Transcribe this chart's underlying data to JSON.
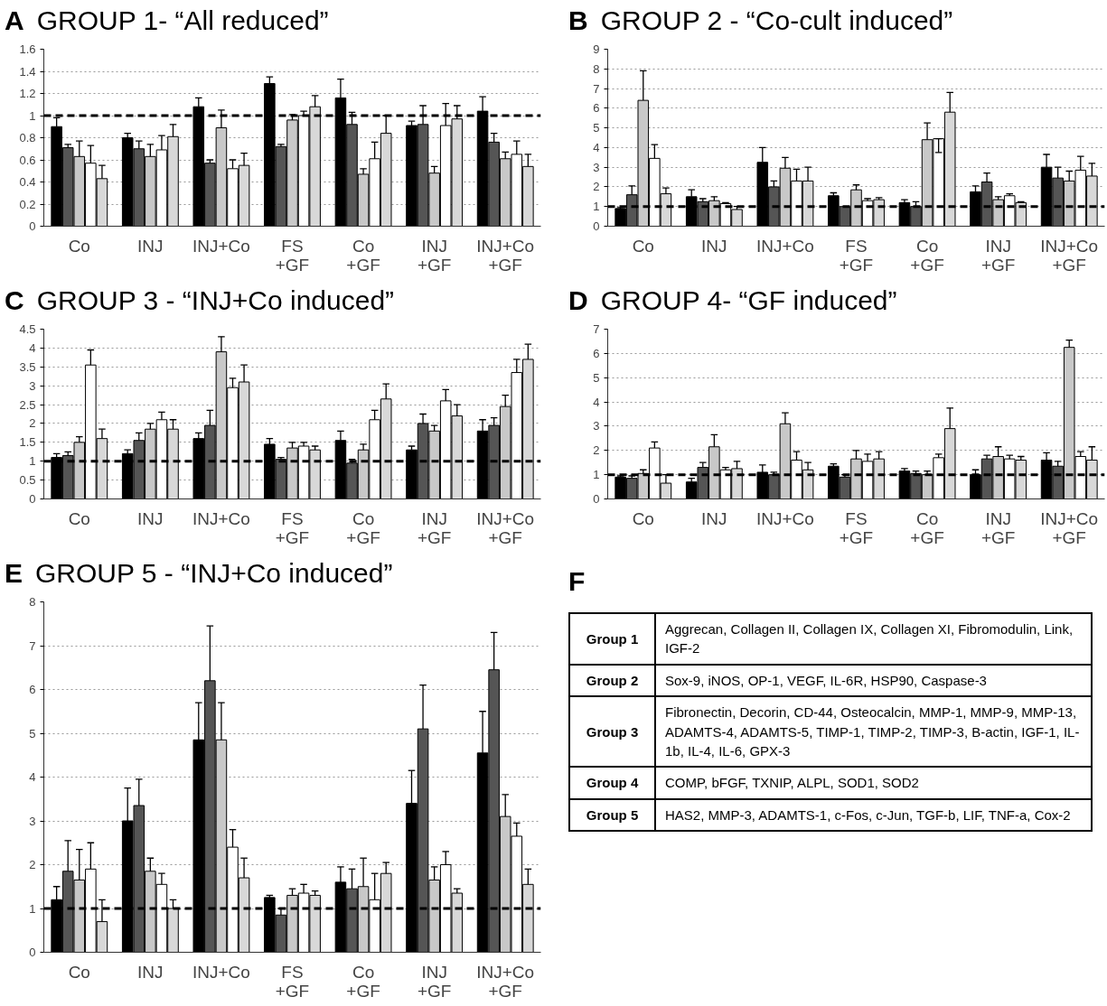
{
  "chart_data": [
    {
      "type": "bar",
      "title": "GROUP 1- “All reduced”",
      "annotations": [
        "A"
      ],
      "categories": [
        "Co",
        "INJ",
        "INJ+Co",
        "FS\n+GF",
        "Co\n+GF",
        "INJ\n+GF",
        "INJ+Co\n+GF"
      ],
      "ylim": [
        0,
        1.6
      ],
      "yticks": [
        0,
        0.2,
        0.4,
        0.6,
        0.8,
        1,
        1.2,
        1.4,
        1.6
      ],
      "grid": "y",
      "ref_lines": [
        {
          "axis": "y",
          "value": 1,
          "line_style": "dashed",
          "color": "#000000"
        }
      ],
      "series": [
        {
          "color": "#000000",
          "values": [
            0.9,
            0.8,
            1.08,
            1.29,
            1.16,
            0.91,
            1.04
          ],
          "errors": [
            [
              0.9,
              0.98
            ],
            [
              0.8,
              0.84
            ],
            [
              1.08,
              1.16
            ],
            [
              1.29,
              1.35
            ],
            [
              1.16,
              1.33
            ],
            [
              0.91,
              0.95
            ],
            [
              1.04,
              1.17
            ]
          ]
        },
        {
          "color": "#555555",
          "values": [
            0.71,
            0.7,
            0.57,
            0.72,
            0.92,
            0.92,
            0.76
          ],
          "errors": [
            [
              0.71,
              0.74
            ],
            [
              0.7,
              0.77
            ],
            [
              0.57,
              0.6
            ],
            [
              0.72,
              0.74
            ],
            [
              0.92,
              1.03
            ],
            [
              0.92,
              1.09
            ],
            [
              0.76,
              0.84
            ]
          ]
        },
        {
          "color": "#c8c8c8",
          "values": [
            0.63,
            0.63,
            0.89,
            0.96,
            0.47,
            0.48,
            0.61
          ],
          "errors": [
            [
              0.63,
              0.77
            ],
            [
              0.63,
              0.74
            ],
            [
              0.89,
              1.05
            ],
            [
              0.96,
              1.01
            ],
            [
              0.47,
              0.52
            ],
            [
              0.48,
              0.54
            ],
            [
              0.61,
              0.67
            ]
          ]
        },
        {
          "color": "#ffffff",
          "values": [
            0.57,
            0.69,
            0.52,
            1.0,
            0.61,
            0.91,
            0.65
          ],
          "errors": [
            [
              0.57,
              0.73
            ],
            [
              0.69,
              0.82
            ],
            [
              0.52,
              0.6
            ],
            [
              1.0,
              1.04
            ],
            [
              0.61,
              0.76
            ],
            [
              0.91,
              1.11
            ],
            [
              0.65,
              0.77
            ]
          ]
        },
        {
          "color": "#d8d8d8",
          "values": [
            0.43,
            0.81,
            0.55,
            1.08,
            0.84,
            0.97,
            0.54
          ],
          "errors": [
            [
              0.43,
              0.55
            ],
            [
              0.81,
              0.92
            ],
            [
              0.55,
              0.66
            ],
            [
              1.08,
              1.18
            ],
            [
              0.84,
              1.0
            ],
            [
              0.97,
              1.09
            ],
            [
              0.54,
              0.65
            ]
          ]
        }
      ]
    },
    {
      "type": "bar",
      "title": "GROUP 2 - “Co-cult induced”",
      "annotations": [
        "B"
      ],
      "categories": [
        "Co",
        "INJ",
        "INJ+Co",
        "FS\n+GF",
        "Co\n+GF",
        "INJ\n+GF",
        "INJ+Co\n+GF"
      ],
      "ylim": [
        0,
        9
      ],
      "yticks": [
        0,
        1,
        2,
        3,
        4,
        5,
        6,
        7,
        8,
        9
      ],
      "grid": "y",
      "ref_lines": [
        {
          "axis": "y",
          "value": 1,
          "line_style": "dashed",
          "color": "#000000"
        }
      ],
      "series": [
        {
          "color": "#000000",
          "values": [
            0.9,
            1.5,
            3.25,
            1.55,
            1.2,
            1.75,
            3.0
          ],
          "errors": [
            [
              0.9,
              0.95
            ],
            [
              1.5,
              1.85
            ],
            [
              3.25,
              4.0
            ],
            [
              1.55,
              1.7
            ],
            [
              1.2,
              1.35
            ],
            [
              1.75,
              2.05
            ],
            [
              3.0,
              3.65
            ]
          ]
        },
        {
          "color": "#555555",
          "values": [
            1.6,
            1.25,
            2.0,
            1.0,
            1.0,
            2.25,
            2.45
          ],
          "errors": [
            [
              1.6,
              2.05
            ],
            [
              1.25,
              1.4
            ],
            [
              2.0,
              2.3
            ],
            null,
            [
              1.0,
              1.25
            ],
            [
              2.25,
              2.7
            ],
            [
              2.45,
              3.0
            ]
          ]
        },
        {
          "color": "#c8c8c8",
          "values": [
            6.4,
            1.3,
            2.95,
            1.85,
            4.4,
            1.35,
            2.3
          ],
          "errors": [
            [
              6.4,
              7.9
            ],
            [
              1.3,
              1.5
            ],
            [
              2.95,
              3.5
            ],
            [
              1.85,
              2.1
            ],
            [
              4.4,
              5.25
            ],
            [
              1.35,
              1.5
            ],
            [
              2.3,
              2.8
            ]
          ]
        },
        {
          "color": "#ffffff",
          "values": [
            3.45,
            1.15,
            2.3,
            1.3,
            4.45,
            1.55,
            2.85
          ],
          "errors": [
            [
              3.45,
              4.15
            ],
            [
              1.15,
              1.2
            ],
            [
              2.3,
              2.9
            ],
            [
              1.3,
              1.4
            ],
            [
              3.75,
              4.45
            ],
            [
              1.55,
              1.65
            ],
            [
              2.85,
              3.55
            ]
          ]
        },
        {
          "color": "#d8d8d8",
          "values": [
            1.65,
            0.85,
            2.3,
            1.35,
            5.8,
            1.2,
            2.55
          ],
          "errors": [
            [
              1.65,
              1.95
            ],
            [
              0.85,
              1.0
            ],
            [
              2.3,
              3.0
            ],
            [
              1.35,
              1.45
            ],
            [
              5.8,
              6.8
            ],
            [
              1.2,
              1.25
            ],
            [
              2.55,
              3.2
            ]
          ]
        }
      ]
    },
    {
      "type": "bar",
      "title": "GROUP 3 - “INJ+Co induced”",
      "annotations": [
        "C"
      ],
      "categories": [
        "Co",
        "INJ",
        "INJ+Co",
        "FS\n+GF",
        "Co\n+GF",
        "INJ\n+GF",
        "INJ+Co\n+GF"
      ],
      "ylim": [
        0,
        4.5
      ],
      "yticks": [
        0,
        0.5,
        1,
        1.5,
        2,
        2.5,
        3,
        3.5,
        4,
        4.5
      ],
      "grid": "y",
      "ref_lines": [
        {
          "axis": "y",
          "value": 1,
          "line_style": "dashed",
          "color": "#000000"
        }
      ],
      "series": [
        {
          "color": "#000000",
          "values": [
            1.1,
            1.2,
            1.6,
            1.45,
            1.55,
            1.3,
            1.8
          ],
          "errors": [
            [
              1.1,
              1.2
            ],
            [
              1.2,
              1.3
            ],
            [
              1.6,
              1.75
            ],
            [
              1.45,
              1.6
            ],
            [
              1.55,
              1.8
            ],
            [
              1.3,
              1.4
            ],
            [
              1.8,
              2.1
            ]
          ]
        },
        {
          "color": "#555555",
          "values": [
            1.15,
            1.55,
            1.95,
            1.05,
            0.95,
            2.0,
            1.95
          ],
          "errors": [
            [
              1.15,
              1.25
            ],
            [
              1.55,
              1.75
            ],
            [
              1.95,
              2.35
            ],
            [
              1.05,
              1.1
            ],
            [
              0.95,
              1.05
            ],
            [
              2.0,
              2.25
            ],
            [
              1.95,
              2.15
            ]
          ]
        },
        {
          "color": "#c8c8c8",
          "values": [
            1.5,
            1.85,
            3.9,
            1.35,
            1.3,
            1.8,
            2.45
          ],
          "errors": [
            [
              1.5,
              1.65
            ],
            [
              1.85,
              2.0
            ],
            [
              3.9,
              4.3
            ],
            [
              1.35,
              1.5
            ],
            [
              1.3,
              1.45
            ],
            [
              1.8,
              1.95
            ],
            [
              2.45,
              2.75
            ]
          ]
        },
        {
          "color": "#ffffff",
          "values": [
            3.55,
            2.1,
            2.95,
            1.4,
            2.1,
            2.6,
            3.35
          ],
          "errors": [
            [
              3.55,
              3.95
            ],
            [
              2.1,
              2.3
            ],
            [
              2.95,
              3.2
            ],
            [
              1.4,
              1.5
            ],
            [
              2.1,
              2.35
            ],
            [
              2.6,
              2.9
            ],
            [
              3.35,
              3.7
            ]
          ]
        },
        {
          "color": "#d8d8d8",
          "values": [
            1.6,
            1.85,
            3.1,
            1.3,
            2.65,
            2.2,
            3.7
          ],
          "errors": [
            [
              1.6,
              1.85
            ],
            [
              1.85,
              2.1
            ],
            [
              3.1,
              3.55
            ],
            [
              1.3,
              1.4
            ],
            [
              2.65,
              3.05
            ],
            [
              2.2,
              2.5
            ],
            [
              3.7,
              4.1
            ]
          ]
        }
      ]
    },
    {
      "type": "bar",
      "title": "GROUP 4- “GF induced”",
      "annotations": [
        "D"
      ],
      "categories": [
        "Co",
        "INJ",
        "INJ+Co",
        "FS\n+GF",
        "Co\n+GF",
        "INJ\n+GF",
        "INJ+Co\n+GF"
      ],
      "ylim": [
        0,
        7
      ],
      "yticks": [
        0,
        1,
        2,
        3,
        4,
        5,
        6,
        7
      ],
      "grid": "y",
      "ref_lines": [
        {
          "axis": "y",
          "value": 1,
          "line_style": "dashed",
          "color": "#000000"
        }
      ],
      "series": [
        {
          "color": "#000000",
          "values": [
            0.9,
            0.7,
            1.1,
            1.35,
            1.15,
            1.0,
            1.6
          ],
          "errors": [
            [
              0.9,
              0.95
            ],
            [
              0.7,
              0.85
            ],
            [
              1.1,
              1.4
            ],
            [
              1.35,
              1.45
            ],
            [
              1.15,
              1.25
            ],
            [
              1.0,
              1.2
            ],
            [
              1.6,
              1.9
            ]
          ]
        },
        {
          "color": "#555555",
          "values": [
            0.85,
            1.3,
            1.0,
            0.9,
            1.05,
            1.65,
            1.35
          ],
          "errors": [
            [
              0.85,
              0.95
            ],
            [
              1.3,
              1.5
            ],
            [
              1.0,
              1.1
            ],
            [
              0.9,
              1.0
            ],
            [
              1.05,
              1.15
            ],
            [
              1.65,
              1.8
            ],
            [
              1.35,
              1.55
            ]
          ]
        },
        {
          "color": "#c8c8c8",
          "values": [
            1.05,
            2.15,
            3.1,
            1.65,
            1.0,
            1.75,
            6.25
          ],
          "errors": [
            [
              1.05,
              1.2
            ],
            [
              2.15,
              2.65
            ],
            [
              3.1,
              3.55
            ],
            [
              1.65,
              2.0
            ],
            [
              1.0,
              1.15
            ],
            [
              1.75,
              2.15
            ],
            [
              6.25,
              6.55
            ]
          ]
        },
        {
          "color": "#ffffff",
          "values": [
            2.1,
            1.2,
            1.6,
            1.55,
            1.7,
            1.65,
            1.75
          ],
          "errors": [
            [
              2.1,
              2.35
            ],
            [
              1.2,
              1.3
            ],
            [
              1.6,
              1.95
            ],
            [
              1.55,
              1.85
            ],
            [
              1.7,
              1.85
            ],
            [
              1.65,
              1.8
            ],
            [
              1.75,
              1.95
            ]
          ]
        },
        {
          "color": "#d8d8d8",
          "values": [
            0.65,
            1.25,
            1.2,
            1.65,
            2.9,
            1.6,
            1.6
          ],
          "errors": [
            [
              0.65,
              1.0
            ],
            [
              1.25,
              1.55
            ],
            [
              1.2,
              1.5
            ],
            [
              1.65,
              1.95
            ],
            [
              2.9,
              3.75
            ],
            [
              1.6,
              1.75
            ],
            [
              1.6,
              2.15
            ]
          ]
        }
      ]
    },
    {
      "type": "bar",
      "title": "GROUP 5 - “INJ+Co induced”",
      "annotations": [
        "E"
      ],
      "categories": [
        "Co",
        "INJ",
        "INJ+Co",
        "FS\n+GF",
        "Co\n+GF",
        "INJ\n+GF",
        "INJ+Co\n+GF"
      ],
      "ylim": [
        0,
        8
      ],
      "yticks": [
        0,
        1,
        2,
        3,
        4,
        5,
        6,
        7,
        8
      ],
      "grid": "y",
      "ref_lines": [
        {
          "axis": "y",
          "value": 1,
          "line_style": "dashed",
          "color": "#000000"
        }
      ],
      "series": [
        {
          "color": "#000000",
          "values": [
            1.2,
            3.0,
            4.85,
            1.25,
            1.6,
            3.4,
            4.55
          ],
          "errors": [
            [
              1.2,
              1.5
            ],
            [
              3.0,
              3.75
            ],
            [
              4.85,
              5.7
            ],
            [
              1.25,
              1.3
            ],
            [
              1.6,
              1.95
            ],
            [
              3.4,
              4.15
            ],
            [
              4.55,
              5.5
            ]
          ]
        },
        {
          "color": "#555555",
          "values": [
            1.85,
            3.35,
            6.2,
            0.85,
            1.45,
            5.1,
            6.45
          ],
          "errors": [
            [
              1.85,
              2.55
            ],
            [
              3.35,
              3.95
            ],
            [
              6.2,
              7.45
            ],
            [
              0.85,
              1.0
            ],
            [
              1.45,
              1.9
            ],
            [
              5.1,
              6.1
            ],
            [
              6.45,
              7.3
            ]
          ]
        },
        {
          "color": "#c8c8c8",
          "values": [
            1.65,
            1.85,
            4.85,
            1.3,
            1.5,
            1.65,
            3.1
          ],
          "errors": [
            [
              1.65,
              2.35
            ],
            [
              1.85,
              2.15
            ],
            [
              4.85,
              5.7
            ],
            [
              1.3,
              1.45
            ],
            [
              1.5,
              2.15
            ],
            [
              1.65,
              1.95
            ],
            [
              3.1,
              3.6
            ]
          ]
        },
        {
          "color": "#ffffff",
          "values": [
            1.9,
            1.55,
            2.4,
            1.35,
            1.2,
            2.0,
            2.65
          ],
          "errors": [
            [
              1.9,
              2.5
            ],
            [
              1.55,
              1.8
            ],
            [
              2.4,
              2.8
            ],
            [
              1.35,
              1.55
            ],
            [
              1.2,
              1.8
            ],
            [
              2.0,
              2.3
            ],
            [
              2.65,
              2.95
            ]
          ]
        },
        {
          "color": "#d8d8d8",
          "values": [
            0.7,
            1.0,
            1.7,
            1.3,
            1.8,
            1.35,
            1.55
          ],
          "errors": [
            [
              0.7,
              1.2
            ],
            [
              1.0,
              1.2
            ],
            [
              1.7,
              2.15
            ],
            [
              1.3,
              1.4
            ],
            [
              1.8,
              2.05
            ],
            [
              1.35,
              1.45
            ],
            [
              1.55,
              1.9
            ]
          ]
        }
      ]
    },
    {
      "type": "other",
      "title": "F",
      "categories": [
        "Group 1",
        "Group 2",
        "Group 3",
        "Group 4",
        "Group 5"
      ],
      "annotations": [
        "Aggrecan, Collagen II, Collagen IX, Collagen XI, Fibromodulin, Link, IGF-2",
        "Sox-9, iNOS, OP-1, VEGF, IL-6R, HSP90, Caspase-3",
        "Fibronectin, Decorin, CD-44, Osteocalcin, MMP-1, MMP-9, MMP-13, ADAMTS-4, ADAMTS-5, TIMP-1, TIMP-2, TIMP-3, B-actin, IGF-1, IL-1b,  IL-4, IL-6, GPX-3",
        "COMP, bFGF, TXNIP, ALPL, SOD1, SOD2",
        "HAS2, MMP-3, ADAMTS-1, c-Fos, c-Jun, TGF-b, LIF, TNF-a, Cox-2"
      ]
    }
  ]
}
